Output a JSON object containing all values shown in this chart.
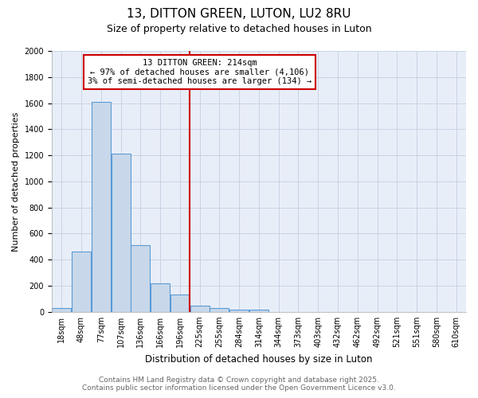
{
  "title_line1": "13, DITTON GREEN, LUTON, LU2 8RU",
  "title_line2": "Size of property relative to detached houses in Luton",
  "xlabel": "Distribution of detached houses by size in Luton",
  "ylabel": "Number of detached properties",
  "bin_labels": [
    "18sqm",
    "48sqm",
    "77sqm",
    "107sqm",
    "136sqm",
    "166sqm",
    "196sqm",
    "225sqm",
    "255sqm",
    "284sqm",
    "314sqm",
    "344sqm",
    "373sqm",
    "403sqm",
    "432sqm",
    "462sqm",
    "492sqm",
    "521sqm",
    "551sqm",
    "580sqm",
    "610sqm"
  ],
  "bar_heights": [
    30,
    460,
    1610,
    1210,
    510,
    220,
    130,
    45,
    30,
    20,
    15,
    0,
    0,
    0,
    0,
    0,
    0,
    0,
    0,
    0,
    0
  ],
  "bar_color": "#c8d8ea",
  "bar_edge_color": "#5b9bd5",
  "property_bin_index": 6,
  "red_line_color": "#cc0000",
  "annotation_line1": "13 DITTON GREEN: 214sqm",
  "annotation_line2": "← 97% of detached houses are smaller (4,106)",
  "annotation_line3": "3% of semi-detached houses are larger (134) →",
  "annotation_box_color": "#ffffff",
  "annotation_box_edge_color": "#cc0000",
  "grid_color": "#c8d4e4",
  "plot_bg_color": "#e8eef8",
  "figure_bg_color": "#ffffff",
  "ylim": [
    0,
    2000
  ],
  "yticks": [
    0,
    200,
    400,
    600,
    800,
    1000,
    1200,
    1400,
    1600,
    1800,
    2000
  ],
  "footer_line1": "Contains HM Land Registry data © Crown copyright and database right 2025.",
  "footer_line2": "Contains public sector information licensed under the Open Government Licence v3.0.",
  "title_fontsize": 11,
  "subtitle_fontsize": 9,
  "axis_label_fontsize": 8.5,
  "tick_fontsize": 7,
  "annotation_fontsize": 7.5,
  "footer_fontsize": 6.5,
  "ylabel_fontsize": 8
}
